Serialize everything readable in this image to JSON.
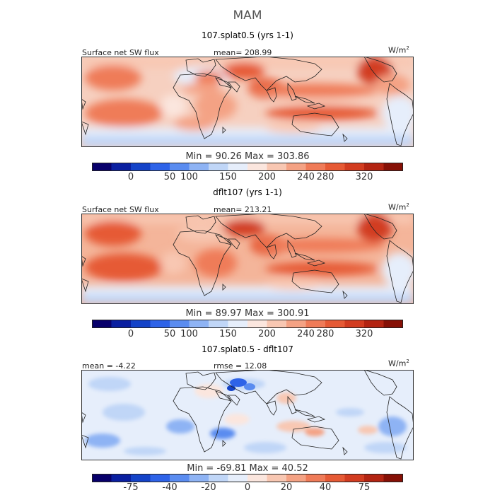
{
  "season": "MAM",
  "panels": [
    {
      "title": "107.splat0.5 (yrs 1-1)",
      "label_left": "Surface net SW flux",
      "stat": "mean= 208.99",
      "units": "W/m",
      "units_exp": "2",
      "min_max": "Min =  90.26 Max = 303.86",
      "ticks": [
        "0",
        "50",
        "100",
        "150",
        "200",
        "240",
        "280",
        "320"
      ],
      "palette": [
        "#08006b",
        "#0a1fa0",
        "#1443c8",
        "#2e63e8",
        "#5a8cf0",
        "#8eb3f4",
        "#c0d6f7",
        "#e6eefb",
        "#fbe6de",
        "#f8c7b2",
        "#f4a284",
        "#ef7b58",
        "#e65a35",
        "#d23c20",
        "#b32412",
        "#861006"
      ]
    },
    {
      "title": "dflt107 (yrs 1-1)",
      "label_left": "Surface net SW flux",
      "stat": "mean= 213.21",
      "units": "W/m",
      "units_exp": "2",
      "min_max": "Min =  89.97 Max = 300.91",
      "ticks": [
        "0",
        "50",
        "100",
        "150",
        "200",
        "240",
        "280",
        "320"
      ],
      "palette": [
        "#08006b",
        "#0a1fa0",
        "#1443c8",
        "#2e63e8",
        "#5a8cf0",
        "#8eb3f4",
        "#c0d6f7",
        "#e6eefb",
        "#fbe6de",
        "#f8c7b2",
        "#f4a284",
        "#ef7b58",
        "#e65a35",
        "#d23c20",
        "#b32412",
        "#861006"
      ]
    },
    {
      "title": "107.splat0.5 - dflt107",
      "label_left": "mean =  -4.22",
      "stat": "rmse =  12.08",
      "units": "W/m",
      "units_exp": "2",
      "min_max": "Min = -69.81 Max =  40.52",
      "ticks": [
        "-75",
        "-40",
        "-20",
        "0",
        "20",
        "40",
        "75"
      ],
      "palette": [
        "#08006b",
        "#0a1fa0",
        "#1443c8",
        "#2e63e8",
        "#5a8cf0",
        "#8eb3f4",
        "#c0d6f7",
        "#e6eefb",
        "#fbe6de",
        "#f8c7b2",
        "#f4a284",
        "#ef7b58",
        "#e65a35",
        "#d23c20",
        "#b32412",
        "#861006"
      ]
    }
  ]
}
